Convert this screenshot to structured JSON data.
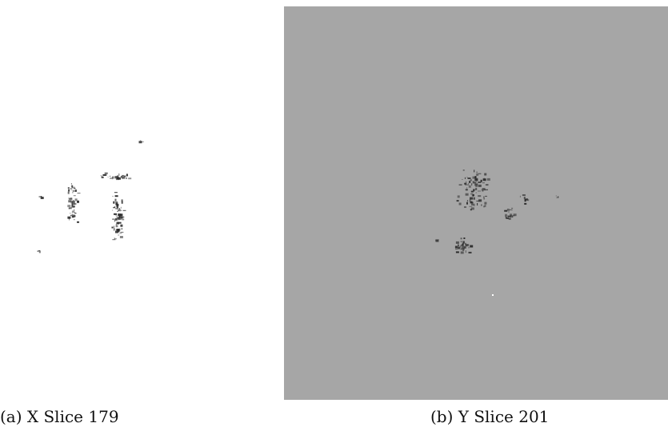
{
  "figures": [
    {
      "id": "a",
      "caption": "(a) X Slice 179",
      "background_color": "#ffffff",
      "speckle_color": "#2a2a2a"
    },
    {
      "id": "b",
      "caption": "(b) Y Slice 201",
      "background_color": "#a6a6a6",
      "speckle_color": "#2a2a2a"
    }
  ]
}
